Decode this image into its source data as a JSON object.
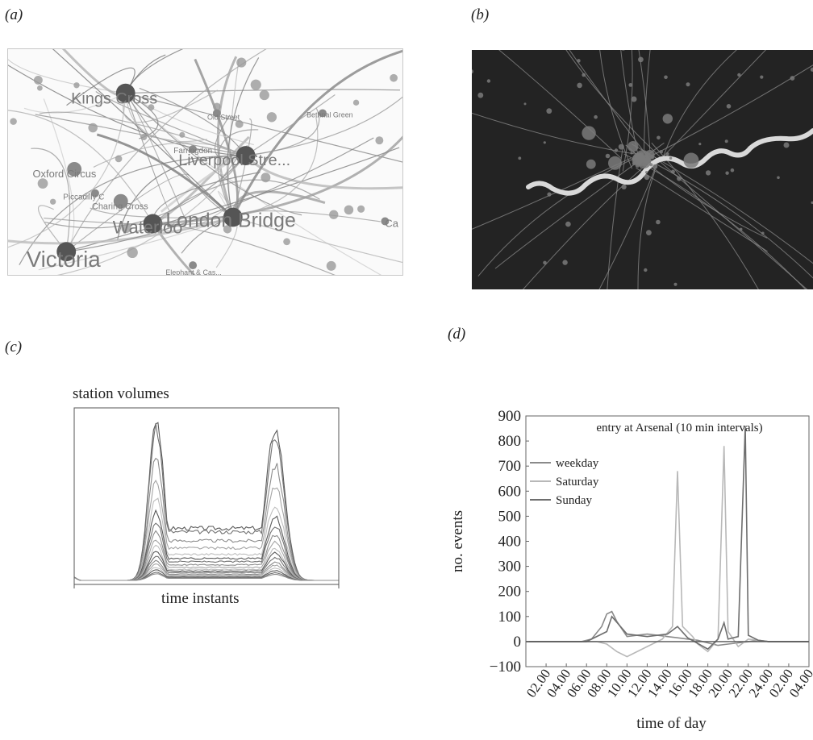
{
  "panels": {
    "a": {
      "label": "(a)"
    },
    "b": {
      "label": "(b)"
    },
    "c": {
      "label": "(c)"
    },
    "d": {
      "label": "(d)"
    }
  },
  "network": {
    "stations": [
      {
        "name": "Kings Cross",
        "size": "large"
      },
      {
        "name": "Liverpool Stre...",
        "size": "large"
      },
      {
        "name": "London Bridge",
        "size": "large"
      },
      {
        "name": "Victoria",
        "size": "large"
      },
      {
        "name": "Waterloo",
        "size": "large"
      },
      {
        "name": "Oxford Circus",
        "size": "medium"
      },
      {
        "name": "Piccadilly C",
        "size": "small"
      },
      {
        "name": "Charing Cross",
        "size": "medium"
      },
      {
        "name": "Farringdon",
        "size": "small"
      },
      {
        "name": "Bethnal Green",
        "size": "small"
      },
      {
        "name": "Old Street",
        "size": "small"
      },
      {
        "name": "Elephant & Cas...",
        "size": "small"
      },
      {
        "name": "Ca",
        "size": "small"
      }
    ]
  },
  "chart_data": [
    {
      "panel": "c",
      "type": "line",
      "title": "station volumes",
      "xlabel": "time instants",
      "ylabel": "",
      "axis_ticks": "none",
      "series_shape": "double-peaked daily volume curves for many stations (morning and evening peaks, midday plateau)",
      "peak_relative_heights": [
        1.0,
        0.93,
        0.76,
        0.62,
        0.5,
        0.42,
        0.36,
        0.3,
        0.25,
        0.21,
        0.18,
        0.15,
        0.12,
        0.1,
        0.08,
        0.065,
        0.05,
        0.04
      ]
    },
    {
      "panel": "d",
      "type": "line",
      "title": "entry at Arsenal (10 min intervals)",
      "xlabel": "time of day",
      "ylabel": "no. events",
      "ylim": [
        -100,
        900
      ],
      "yticks": [
        "900",
        "800",
        "700",
        "600",
        "500",
        "400",
        "300",
        "200",
        "100",
        "0",
        "−100"
      ],
      "xticks": [
        "02.00",
        "04.00",
        "06.00",
        "08.00",
        "10.00",
        "12.00",
        "14.00",
        "16.00",
        "18.00",
        "20.00",
        "22.00",
        "24.00",
        "02.00",
        "04.00"
      ],
      "legend": [
        "weekday",
        "Saturday",
        "Sunday"
      ],
      "legend_position": "top-left",
      "series": [
        {
          "x": [
            0,
            4,
            5.5,
            6.5,
            7.5,
            8,
            8.5,
            9,
            10,
            11,
            12,
            13,
            14,
            15,
            16,
            17,
            18,
            19,
            20,
            21,
            22,
            23,
            24,
            28
          ],
          "y": [
            0,
            0,
            0,
            10,
            60,
            110,
            120,
            80,
            20,
            25,
            30,
            25,
            20,
            15,
            10,
            5,
            -5,
            -15,
            -10,
            -5,
            0,
            5,
            0,
            0
          ]
        },
        {
          "x": [
            0,
            5,
            7,
            8,
            9,
            10,
            12,
            13.5,
            14.5,
            15,
            15.5,
            16.5,
            17,
            18,
            19,
            19.6,
            20,
            21,
            22,
            23,
            24,
            28
          ],
          "y": [
            0,
            0,
            0,
            -10,
            -40,
            -60,
            -20,
            10,
            60,
            680,
            60,
            20,
            -10,
            -40,
            10,
            780,
            40,
            -20,
            10,
            5,
            0,
            0
          ]
        },
        {
          "x": [
            0,
            6,
            8,
            8.5,
            10,
            12,
            14,
            15,
            16,
            18,
            19,
            19.6,
            20,
            21,
            21.7,
            22,
            23,
            24,
            28
          ],
          "y": [
            0,
            0,
            40,
            100,
            30,
            20,
            30,
            60,
            15,
            -30,
            10,
            75,
            10,
            20,
            860,
            25,
            5,
            0,
            0
          ]
        }
      ]
    }
  ]
}
